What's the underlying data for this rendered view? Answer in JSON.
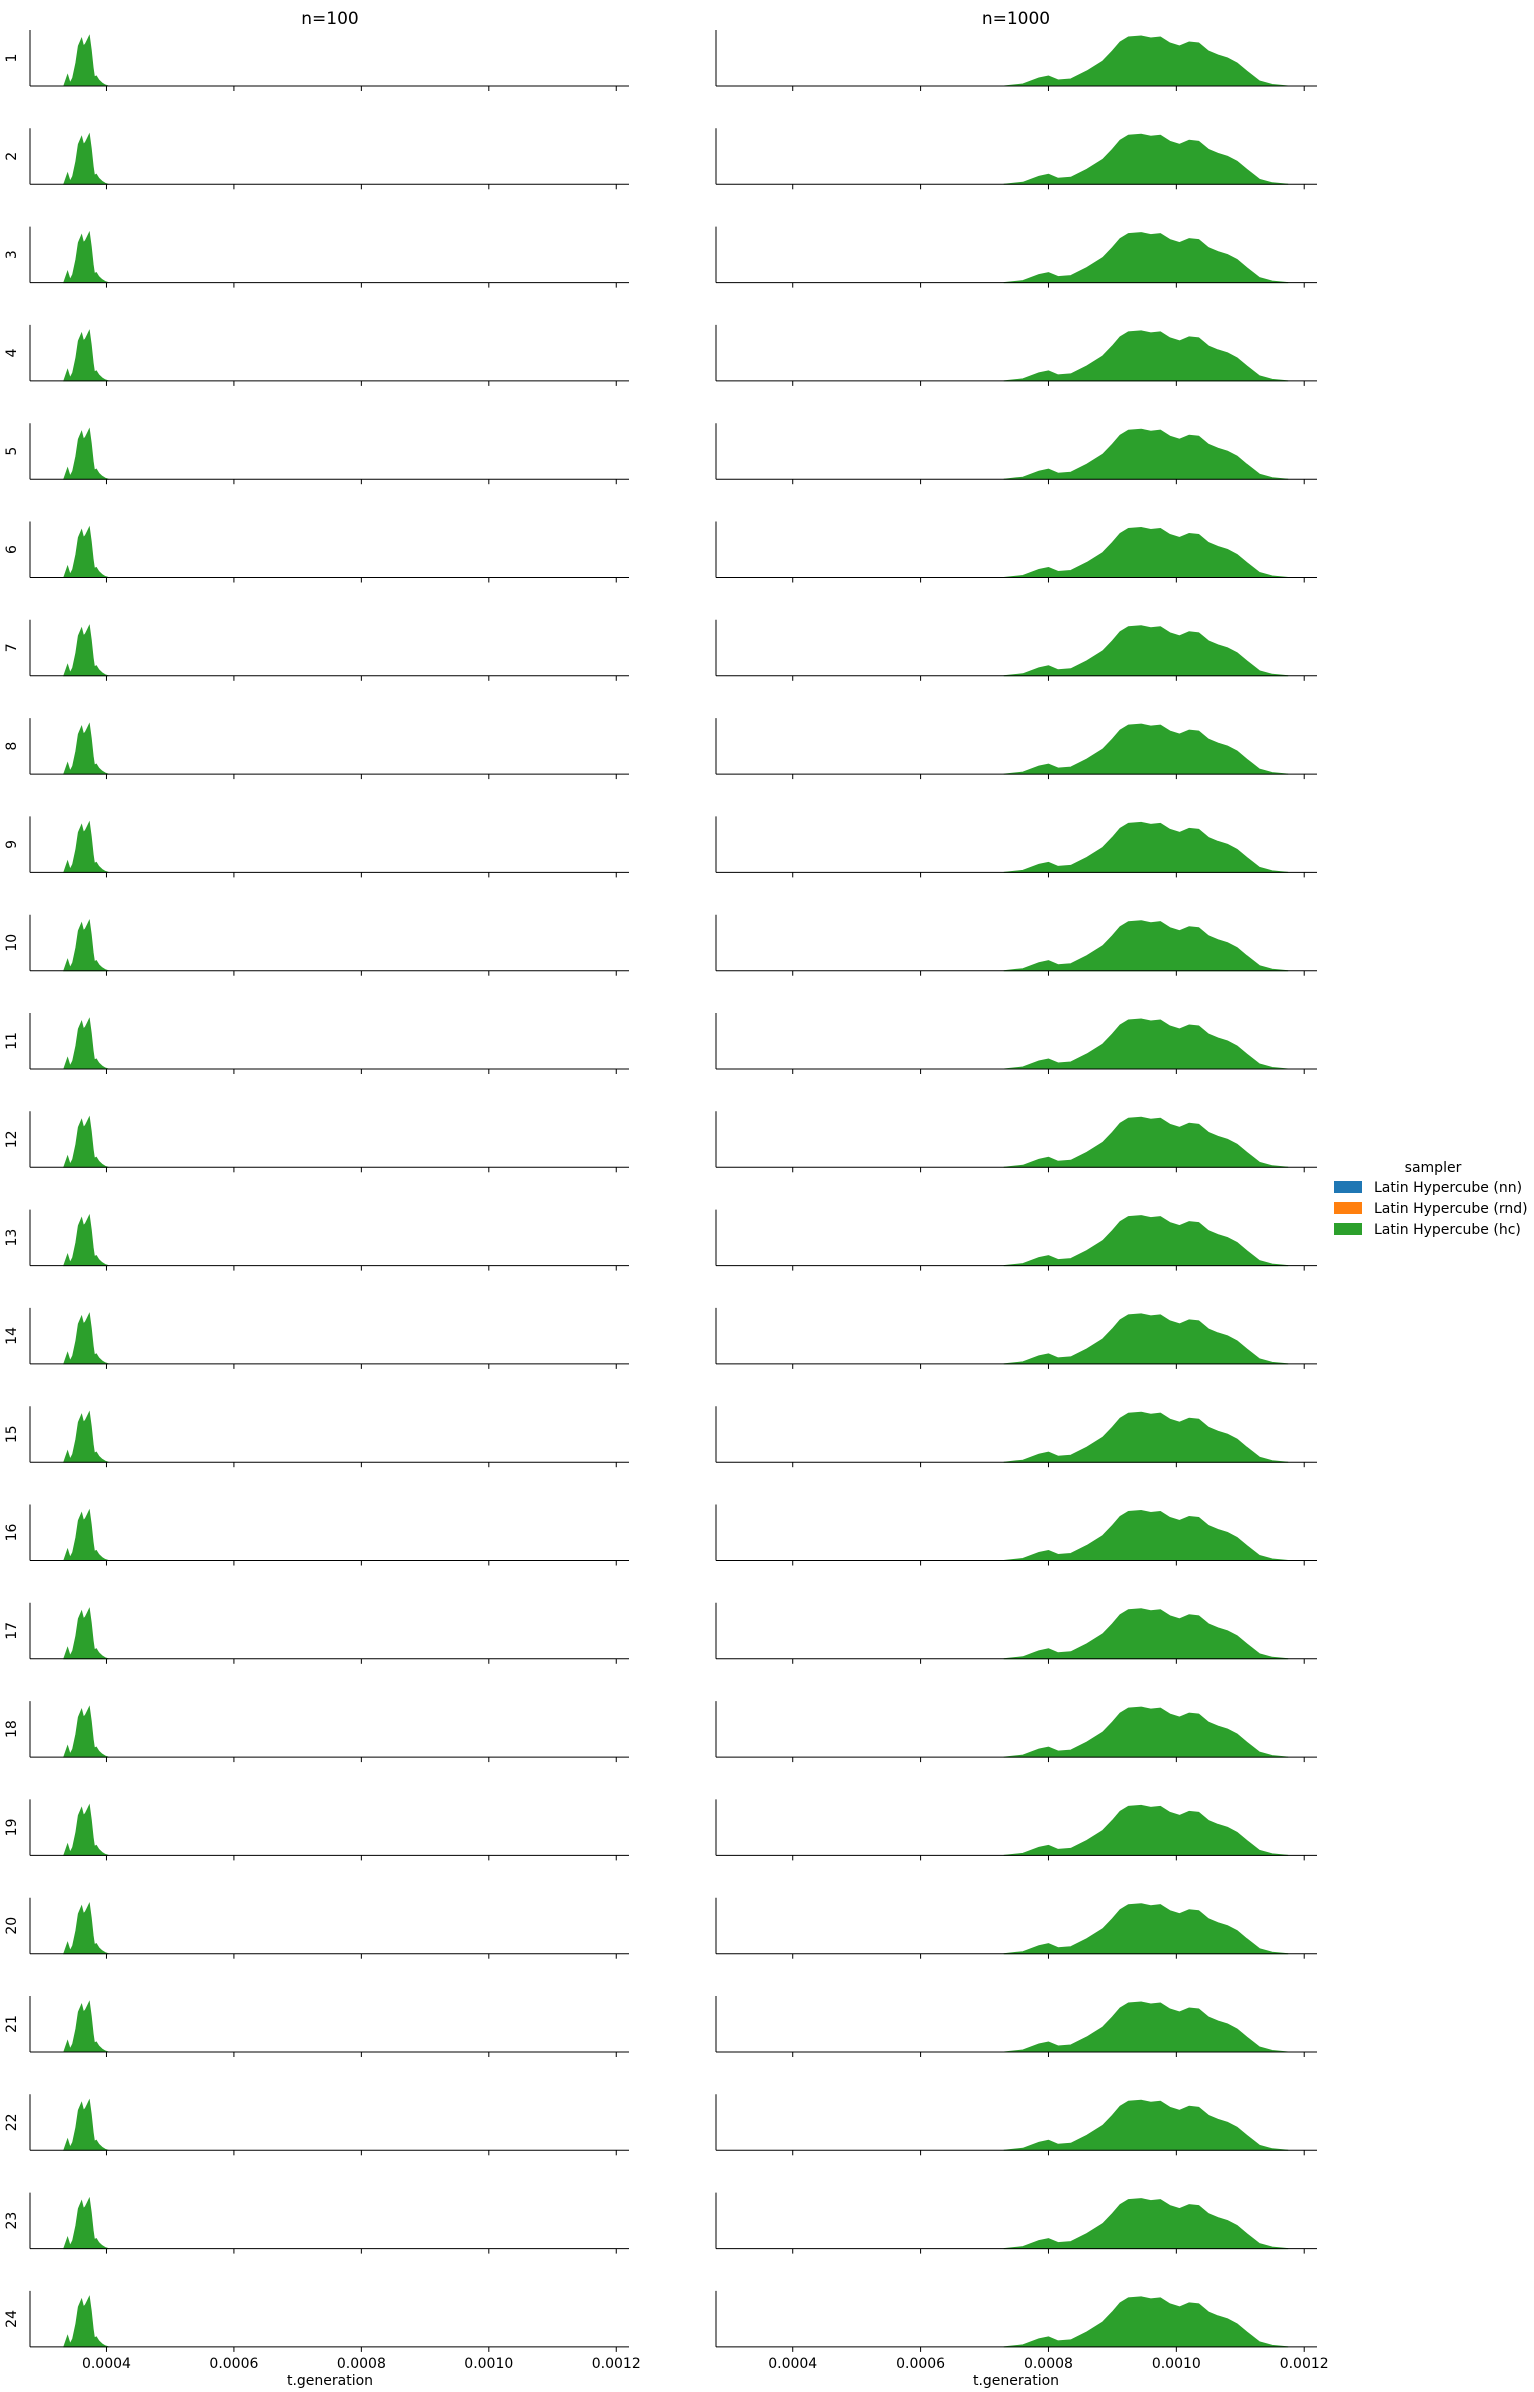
{
  "chart_data": {
    "type": "area",
    "subtype": "kde-density-facet-grid",
    "x_label": "t.generation",
    "x_range": [
      0.00028,
      0.00122
    ],
    "x_ticks": [
      0.0004,
      0.0006,
      0.0008,
      0.001,
      0.0012
    ],
    "x_tick_labels": [
      "0.0004",
      "0.0006",
      "0.0008",
      "0.0010",
      "0.0012"
    ],
    "y_range": [
      0,
      1
    ],
    "legend": {
      "title": "sampler",
      "placement": "right",
      "entries": [
        {
          "label": "Latin Hypercube (nn)",
          "color": "#1f77b4"
        },
        {
          "label": "Latin Hypercube (rnd)",
          "color": "#ff7f0e"
        },
        {
          "label": "Latin Hypercube (hc)",
          "color": "#2ca02c"
        }
      ]
    },
    "rows": [
      "1",
      "2",
      "3",
      "4",
      "5",
      "6",
      "7",
      "8",
      "9",
      "10",
      "11",
      "12",
      "13",
      "14",
      "15",
      "16",
      "17",
      "18",
      "19",
      "20",
      "21",
      "22",
      "23",
      "24"
    ],
    "columns": [
      {
        "title": "n=100",
        "series": "Latin Hypercube (hc)",
        "color": "#2ca02c",
        "density_x": [
          0.000333,
          0.000339,
          0.000343,
          0.000347,
          0.000352,
          0.000356,
          0.000361,
          0.000364,
          0.000367,
          0.00037,
          0.000373,
          0.000376,
          0.000379,
          0.000381,
          0.000384,
          0.000388,
          0.000393,
          0.000398,
          0.000403
        ],
        "density_y": [
          0.0,
          0.22,
          0.06,
          0.16,
          0.46,
          0.8,
          0.95,
          0.8,
          0.84,
          0.92,
          1.0,
          0.72,
          0.36,
          0.18,
          0.2,
          0.12,
          0.06,
          0.02,
          0.0
        ]
      },
      {
        "title": "n=1000",
        "series": "Latin Hypercube (hc)",
        "color": "#2ca02c",
        "density_x": [
          0.00073,
          0.00076,
          0.000785,
          0.0008,
          0.000815,
          0.000835,
          0.00086,
          0.000885,
          0.0009,
          0.000912,
          0.000925,
          0.000945,
          0.00096,
          0.000975,
          0.00099,
          0.001005,
          0.00102,
          0.001035,
          0.00105,
          0.001065,
          0.00108,
          0.001095,
          0.00111,
          0.00113,
          0.00115,
          0.001175
        ],
        "density_y": [
          0.0,
          0.04,
          0.16,
          0.2,
          0.12,
          0.14,
          0.3,
          0.5,
          0.7,
          0.88,
          0.98,
          1.0,
          0.96,
          0.98,
          0.86,
          0.8,
          0.88,
          0.86,
          0.7,
          0.62,
          0.56,
          0.46,
          0.3,
          0.1,
          0.03,
          0.0
        ]
      }
    ]
  }
}
